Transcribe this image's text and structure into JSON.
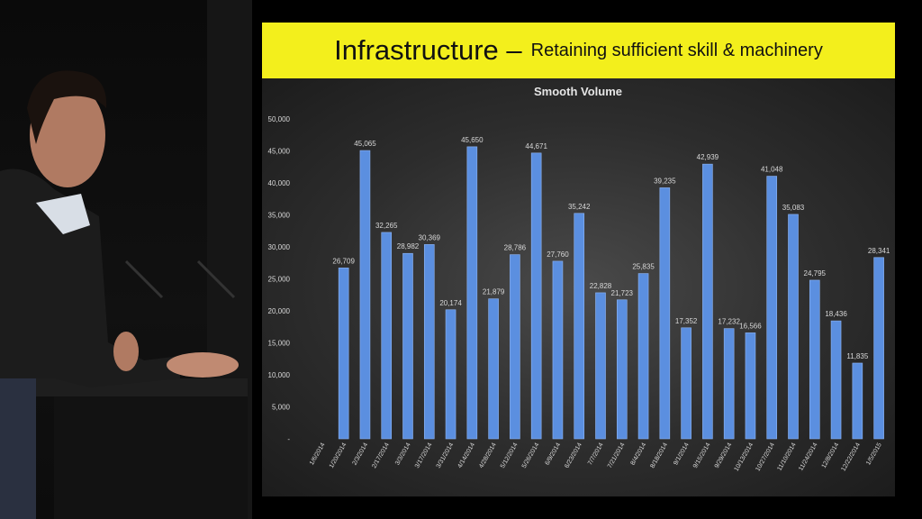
{
  "slide": {
    "title_main": "Infrastructure –",
    "title_sub": "Retaining sufficient skill & machinery"
  },
  "colors": {
    "banner": "#f3ef1c",
    "bar": "#5b8fe0",
    "bar_highlight": "#8fb6f5",
    "background": "#2b2b2b",
    "text": "#d8d8d8"
  },
  "chart_data": {
    "type": "bar",
    "title": "Smooth Volume",
    "xlabel": "",
    "ylabel": "",
    "ylim": [
      0,
      50000
    ],
    "yticks": [
      "50,000",
      "45,000",
      "40,000",
      "35,000",
      "30,000",
      "25,000",
      "20,000",
      "15,000",
      "10,000",
      "5,000",
      "-"
    ],
    "grid": false,
    "legend": "none",
    "categories": [
      "1/6/2014",
      "1/20/2014",
      "2/3/2014",
      "2/17/2014",
      "3/3/2014",
      "3/17/2014",
      "3/31/2014",
      "4/14/2014",
      "4/28/2014",
      "5/12/2014",
      "5/26/2014",
      "6/9/2014",
      "6/23/2014",
      "7/7/2014",
      "7/21/2014",
      "8/4/2014",
      "8/18/2014",
      "9/1/2014",
      "9/15/2014",
      "9/29/2014",
      "10/13/2014",
      "10/27/2014",
      "11/10/2014",
      "11/24/2014",
      "12/8/2014",
      "12/22/2014",
      "1/5/2015"
    ],
    "values": [
      null,
      26709,
      45065,
      32265,
      28982,
      30369,
      20174,
      45650,
      21879,
      28786,
      44671,
      27760,
      35242,
      22828,
      21723,
      25835,
      39235,
      17352,
      42939,
      17232,
      16566,
      41048,
      35083,
      24795,
      18436,
      11835,
      28341
    ],
    "data_labels": [
      "",
      "26,709",
      "45,065",
      "32,265",
      "28,982",
      "30,369",
      "20,174",
      "45,650",
      "21,879",
      "28,786",
      "44,671",
      "27,760",
      "35,242",
      "22,828",
      "21,723",
      "25,835",
      "39,235",
      "17,352",
      "42,939",
      "17,232",
      "16,566",
      "41,048",
      "35,083",
      "24,795",
      "18,436",
      "11,835",
      "28,341"
    ]
  }
}
